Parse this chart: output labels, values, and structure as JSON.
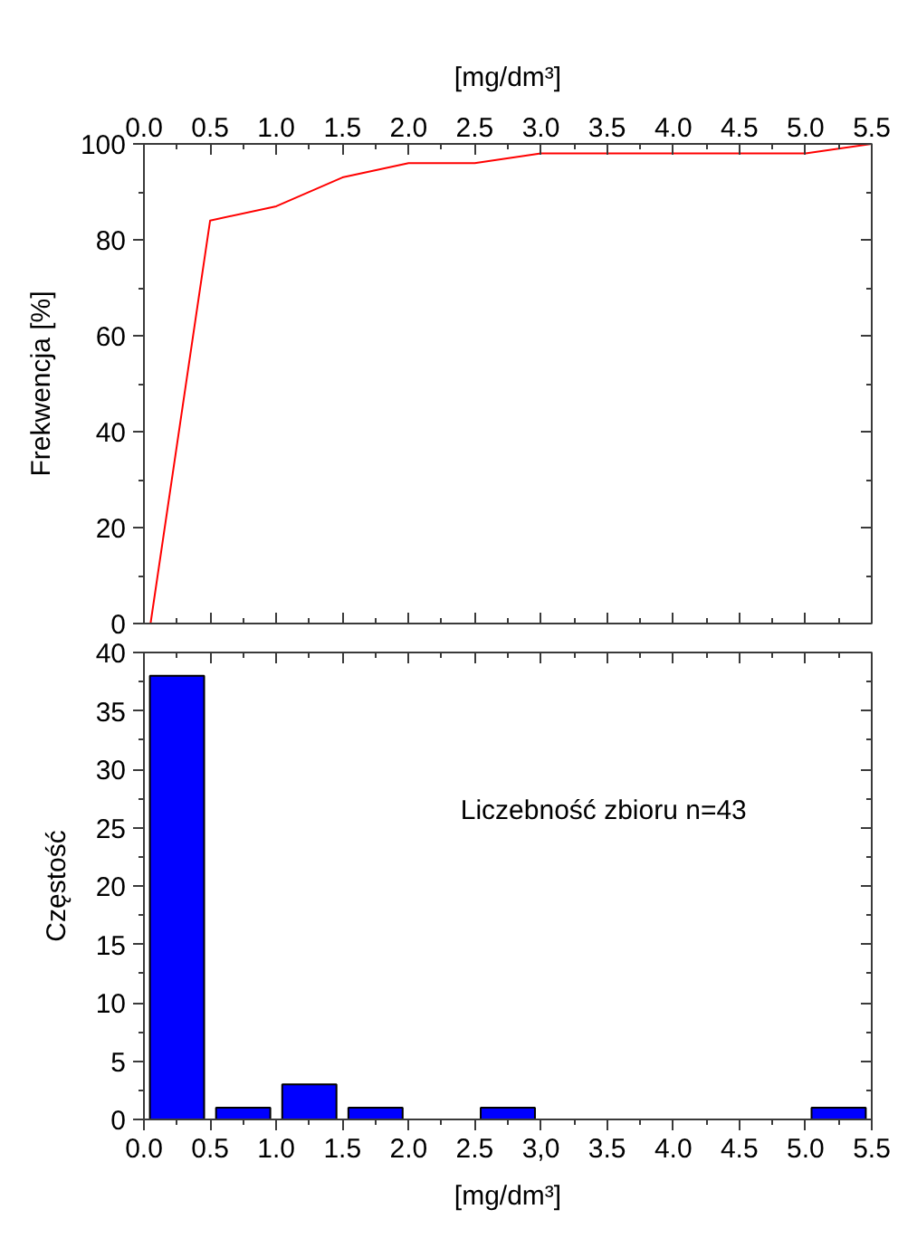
{
  "chart_data": [
    {
      "type": "line",
      "x": [
        0.05,
        0.5,
        1,
        1.5,
        2,
        2.5,
        3,
        3.5,
        4,
        4.5,
        5,
        5.5
      ],
      "values": [
        0,
        84,
        87,
        93,
        96,
        96,
        98,
        98,
        98,
        98,
        98,
        100
      ],
      "color": "#ff0000",
      "xlabel": "[mg/dm³]",
      "xlim": [
        0,
        5.5
      ],
      "xticks": [
        {
          "value": 0,
          "label": "0.0"
        },
        0.5,
        {
          "value": 1,
          "label": "1.0"
        },
        1.5,
        {
          "value": 2,
          "label": "2.0"
        },
        2.5,
        {
          "value": 3,
          "label": "3.0"
        },
        3.5,
        {
          "value": 4,
          "label": "4.0"
        },
        4.5,
        {
          "value": 5,
          "label": "5.0"
        },
        5.5
      ],
      "ylabel": "Frekwencja [%]",
      "ylim": [
        0,
        100
      ],
      "yticks": [
        0,
        20,
        40,
        60,
        80,
        100
      ]
    },
    {
      "type": "histogram",
      "bins": [
        0,
        0.5,
        1,
        1.5,
        2,
        2.5,
        3,
        3.5,
        4,
        4.5,
        5,
        5.5
      ],
      "values": [
        38,
        1,
        3,
        1,
        0,
        1,
        0,
        0,
        0,
        0,
        1
      ],
      "color": "#0000ff",
      "xlabel": "[mg/dm³]",
      "xlim": [
        0,
        5.5
      ],
      "xticks": [
        {
          "value": 0,
          "label": "0.0"
        },
        0.5,
        {
          "value": 1,
          "label": "1.0"
        },
        1.5,
        {
          "value": 2,
          "label": "2.0"
        },
        2.5,
        {
          "value": 3,
          "label": "3,0"
        },
        3.5,
        {
          "value": 4,
          "label": "4.0"
        },
        4.5,
        {
          "value": 5,
          "label": "5.0"
        },
        5.5
      ],
      "ylabel": "Częstość",
      "ylim": [
        0,
        40
      ],
      "yticks": [
        0,
        5,
        10,
        15,
        20,
        25,
        30,
        35,
        40
      ],
      "annotations": [
        "Liczebność zbioru n=43"
      ]
    }
  ]
}
